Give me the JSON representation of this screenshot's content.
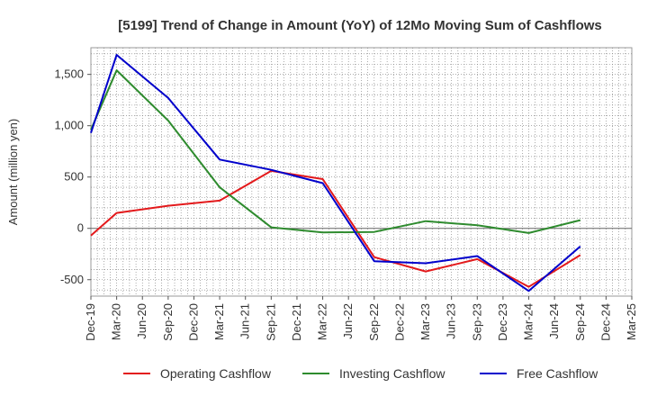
{
  "chart_data": {
    "type": "line",
    "title": "[5199]  Trend of Change in Amount (YoY) of 12Mo Moving Sum of Cashflows",
    "xlabel": "",
    "ylabel": "Amount (million yen)",
    "ylim": [
      -660,
      1760
    ],
    "yticks": [
      -500,
      0,
      500,
      1000,
      1500
    ],
    "ytick_labels": [
      "-500",
      "0",
      "500",
      "1,000",
      "1,500"
    ],
    "categories": [
      "Dec-19",
      "Mar-20",
      "Jun-20",
      "Sep-20",
      "Dec-20",
      "Mar-21",
      "Jun-21",
      "Sep-21",
      "Dec-21",
      "Mar-22",
      "Jun-22",
      "Sep-22",
      "Dec-22",
      "Mar-23",
      "Jun-23",
      "Sep-23",
      "Dec-23",
      "Mar-24",
      "Jun-24",
      "Sep-24",
      "Dec-24",
      "Mar-25"
    ],
    "grid": true,
    "legend_position": "bottom",
    "series": [
      {
        "name": "Operating Cashflow",
        "color": "#e31a1c",
        "values": [
          -70,
          150,
          null,
          220,
          null,
          270,
          null,
          560,
          null,
          480,
          null,
          -280,
          null,
          -420,
          null,
          -300,
          null,
          -570,
          null,
          -260,
          null,
          null
        ]
      },
      {
        "name": "Investing Cashflow",
        "color": "#2e8b2e",
        "values": [
          960,
          1540,
          null,
          1050,
          null,
          400,
          null,
          10,
          null,
          -40,
          null,
          -35,
          null,
          70,
          null,
          30,
          null,
          -45,
          null,
          80,
          null,
          null
        ]
      },
      {
        "name": "Free Cashflow",
        "color": "#0000cc",
        "values": [
          930,
          1690,
          null,
          1270,
          null,
          670,
          null,
          570,
          null,
          440,
          null,
          -320,
          null,
          -340,
          null,
          -270,
          null,
          -610,
          null,
          -175,
          null,
          null
        ]
      }
    ]
  }
}
